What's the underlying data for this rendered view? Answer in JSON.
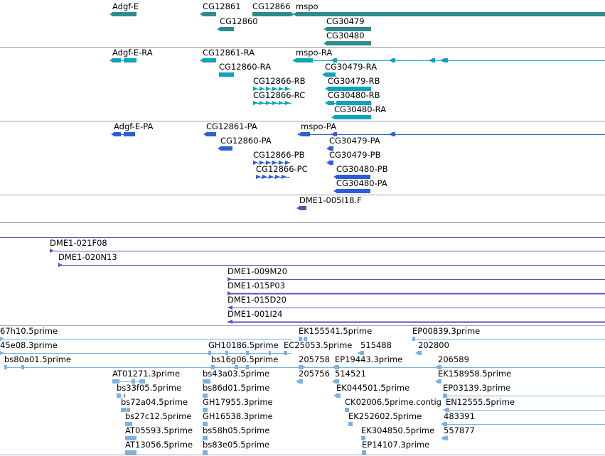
{
  "colors": {
    "gene": "#2e8b8b",
    "transcript": "#0da3bf",
    "protein": "#2c5fd3",
    "clone": "#6a4ab8",
    "est": "#79b3e3",
    "divider": "#9aa3ad"
  },
  "tracks": [
    {
      "id": "gene",
      "color_key": "gene",
      "labels": [
        "Adgf-E",
        "CG12861",
        "CG12866",
        "mspo",
        "CG12860",
        "CG30479",
        "CG30480"
      ]
    },
    {
      "id": "transcript",
      "color_key": "transcript",
      "labels": [
        "Adgf-E-RA",
        "CG12861-RA",
        "mspo-RA",
        "CG12860-RA",
        "CG30479-RA",
        "CG12866-RB",
        "CG30479-RB",
        "CG12866-RC",
        "CG30480-RB",
        "CG30480-RA"
      ]
    },
    {
      "id": "protein",
      "color_key": "protein",
      "labels": [
        "Adgf-E-PA",
        "CG12861-PA",
        "mspo-PA",
        "CG12860-PA",
        "CG30479-PA",
        "CG12866-PB",
        "CG30479-PB",
        "CG12866-PC",
        "CG30480-PB",
        "CG30480-PA"
      ]
    },
    {
      "id": "bac-end",
      "color_key": "clone",
      "labels": [
        "DME1-005I18.F"
      ]
    },
    {
      "id": "bac",
      "color_key": "clone",
      "labels": [
        "DME1-021F08",
        "DME1-020N13",
        "DME1-009M20",
        "DME1-015P03",
        "DME1-015D20",
        "DME1-001I24"
      ]
    },
    {
      "id": "est",
      "color_key": "est",
      "labels": [
        "67h10.5prime",
        "EK155541.5prime",
        "EP00839.3prime",
        "45e08.3prime",
        "GH10186.5prime",
        "EC25053.5prime",
        "515488",
        "202800",
        "bs80a01.5prime",
        "bs16g06.5prime",
        "205758",
        "EP19443.3prime",
        "206589",
        "AT01271.3prime",
        "bs43a03.5prime",
        "205756",
        "514521",
        "EK158958.5prime",
        "bs33f05.5prime",
        "bs86d01.5prime",
        "EK044501.5prime",
        "EP03139.3prime",
        "bs72a04.5prime",
        "GH17955.3prime",
        "CK02006.5prime.contig",
        "EN12555.5prime",
        "bs27c12.5prime",
        "GH16538.3prime",
        "EK252602.5prime",
        "483391",
        "AT05593.5prime",
        "bs58h05.5prime",
        "EK304850.5prime",
        "557877",
        "AT13056.5prime",
        "bs83e05.5prime",
        "EP14107.3prime"
      ]
    }
  ]
}
